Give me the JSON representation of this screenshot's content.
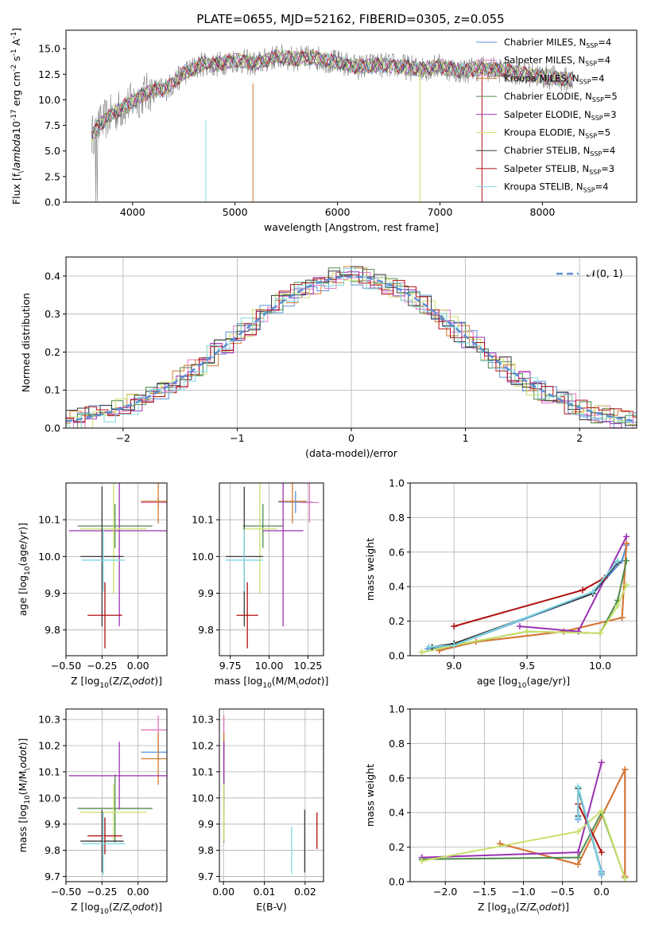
{
  "figure": {
    "title": "PLATE=0655, MJD=52162, FIBERID=0305, z=0.055"
  },
  "series": [
    {
      "name": "Chabrier MILES, N$_{SSP}$=4",
      "label_main": "Chabrier MILES, N",
      "label_sub": "SSP",
      "label_end": "=4",
      "color": "#5b8fd6"
    },
    {
      "name": "Salpeter MILES, N$_{SSP}$=4",
      "label_main": "Salpeter MILES, N",
      "label_sub": "SSP",
      "label_end": "=4",
      "color": "#e377c2"
    },
    {
      "name": "Kroupa MILES, N$_{SSP}$=4",
      "label_main": "Kroupa MILES, N",
      "label_sub": "SSP",
      "label_end": "=4",
      "color": "#d4782f"
    },
    {
      "name": "Chabrier ELODIE, N$_{SSP}$=5",
      "label_main": "Chabrier ELODIE, N",
      "label_sub": "SSP",
      "label_end": "=5",
      "color": "#4f8a4a"
    },
    {
      "name": "Salpeter ELODIE, N$_{SSP}$=3",
      "label_main": "Salpeter ELODIE, N",
      "label_sub": "SSP",
      "label_end": "=3",
      "color": "#9b30b4"
    },
    {
      "name": "Kroupa ELODIE, N$_{SSP}$=5",
      "label_main": "Kroupa ELODIE, N",
      "label_sub": "SSP",
      "label_end": "=5",
      "color": "#c8e06a"
    },
    {
      "name": "Chabrier STELIB, N$_{SSP}$=4",
      "label_main": "Chabrier STELIB, N",
      "label_sub": "SSP",
      "label_end": "=4",
      "color": "#3a3a3a"
    },
    {
      "name": "Salpeter STELIB, N$_{SSP}$=3",
      "label_main": "Salpeter STELIB, N",
      "label_sub": "SSP",
      "label_end": "=3",
      "color": "#b01010"
    },
    {
      "name": "Kroupa STELIB, N$_{SSP}$=4",
      "label_main": "Kroupa STELIB, N",
      "label_sub": "SSP",
      "label_end": "=4",
      "color": "#7fd8e3"
    }
  ],
  "chart_data": [
    {
      "id": "spectrum",
      "type": "line",
      "xlabel": "wavelength [Angstrom, rest frame]",
      "ylabel": "Flux [f$_\\lambda$10$^{-17}$ erg cm$^{-2}$ s$^{-1}$ A$^{-1}$]",
      "xlim": [
        3350,
        8920
      ],
      "ylim": [
        0,
        16.8
      ],
      "xticks": [
        4000,
        5000,
        6000,
        7000,
        8000
      ],
      "yticks": [
        0.0,
        2.5,
        5.0,
        7.5,
        10.0,
        12.5,
        15.0
      ],
      "grid": false,
      "legend": "right",
      "data_color": "#808080",
      "continuum": [
        [
          3600,
          6.5
        ],
        [
          3700,
          7.8
        ],
        [
          3800,
          8.6
        ],
        [
          3900,
          9.2
        ],
        [
          4000,
          9.8
        ],
        [
          4100,
          10.5
        ],
        [
          4200,
          10.9
        ],
        [
          4300,
          11.0
        ],
        [
          4400,
          11.6
        ],
        [
          4500,
          12.6
        ],
        [
          4600,
          13.1
        ],
        [
          4700,
          13.6
        ],
        [
          4800,
          13.4
        ],
        [
          4900,
          13.7
        ],
        [
          5000,
          13.9
        ],
        [
          5200,
          13.5
        ],
        [
          5400,
          14.2
        ],
        [
          5600,
          14.0
        ],
        [
          5800,
          14.1
        ],
        [
          6000,
          13.6
        ],
        [
          6200,
          13.2
        ],
        [
          6400,
          13.4
        ],
        [
          6600,
          13.3
        ],
        [
          6800,
          13.0
        ],
        [
          7000,
          13.3
        ],
        [
          7200,
          12.8
        ],
        [
          7400,
          13.1
        ],
        [
          7600,
          12.9
        ],
        [
          7800,
          12.6
        ],
        [
          8000,
          12.3
        ],
        [
          8200,
          12.0
        ],
        [
          8300,
          11.9
        ]
      ]
    },
    {
      "id": "residuals",
      "type": "line",
      "xlabel": "(data-model)/error",
      "ylabel": "Normed distribution",
      "xlim": [
        -2.5,
        2.5
      ],
      "ylim": [
        0,
        0.45
      ],
      "xticks": [
        -2,
        -1,
        0,
        1,
        2
      ],
      "yticks": [
        0.0,
        0.1,
        0.2,
        0.3,
        0.4
      ],
      "grid": true,
      "legend": "top-right",
      "reference": {
        "name": "$\\mathcal{N}(0,1)$",
        "label_main": "𝒩(0, 1)",
        "color": "#5b8fd6",
        "style": "dashed"
      }
    },
    {
      "id": "z-age",
      "type": "scatter",
      "xlabel": "Z [log$_{10}$(Z/Z$_\\odot$)]",
      "ylabel": "age  [log$_{10}$(age/yr)]",
      "xlim": [
        -0.5,
        0.2
      ],
      "ylim": [
        9.73,
        10.2
      ],
      "xticks": [
        -0.5,
        -0.25,
        0.0
      ],
      "yticks": [
        9.8,
        9.9,
        10.0,
        10.1
      ],
      "grid": true,
      "points": [
        {
          "s": 0,
          "x": 0.14,
          "y": 10.148,
          "xerr": 0.12,
          "yerr": 0.01
        },
        {
          "s": 1,
          "x": 0.14,
          "y": 10.147,
          "xerr": 0.12,
          "yerr": 0.01
        },
        {
          "s": 2,
          "x": 0.14,
          "y": 10.15,
          "xerr": 0.12,
          "yerr": 0.06
        },
        {
          "s": 3,
          "x": -0.16,
          "y": 10.083,
          "xerr": 0.26,
          "yerr": 0.06
        },
        {
          "s": 4,
          "x": -0.13,
          "y": 10.07,
          "xerr": 0.35,
          "yerr": 0.26
        },
        {
          "s": 5,
          "x": -0.17,
          "y": 10.075,
          "xerr": 0.23,
          "yerr": 0.175
        },
        {
          "s": 6,
          "x": -0.25,
          "y": 10.0,
          "xerr": 0.15,
          "yerr": 0.19
        },
        {
          "s": 7,
          "x": -0.23,
          "y": 9.84,
          "xerr": 0.12,
          "yerr": 0.09
        },
        {
          "s": 8,
          "x": -0.24,
          "y": 9.99,
          "xerr": 0.15,
          "yerr": 0.085
        }
      ]
    },
    {
      "id": "mass-age",
      "type": "scatter",
      "xlabel": "mass [log$_{10}$(M/M$_\\odot$)]",
      "ylabel": "",
      "xlim": [
        9.68,
        10.35
      ],
      "ylim": [
        9.73,
        10.2
      ],
      "xticks": [
        9.75,
        10.0,
        10.25
      ],
      "yticks": [
        9.8,
        9.9,
        10.0,
        10.1
      ],
      "grid": true,
      "points": [
        {
          "s": 0,
          "x": 10.17,
          "y": 10.148,
          "xerr": 0.11,
          "yerr": 0.03
        },
        {
          "s": 1,
          "x": 10.26,
          "y": 10.147,
          "xerr": 0.06,
          "yerr": 0.055
        },
        {
          "s": 2,
          "x": 10.15,
          "y": 10.15,
          "xerr": 0.09,
          "yerr": 0.06
        },
        {
          "s": 3,
          "x": 9.96,
          "y": 10.083,
          "xerr": 0.13,
          "yerr": 0.06
        },
        {
          "s": 4,
          "x": 10.09,
          "y": 10.07,
          "xerr": 0.13,
          "yerr": 0.26
        },
        {
          "s": 5,
          "x": 9.94,
          "y": 10.075,
          "xerr": 0.11,
          "yerr": 0.175
        },
        {
          "s": 6,
          "x": 9.84,
          "y": 10.0,
          "xerr": 0.12,
          "yerr": 0.19
        },
        {
          "s": 7,
          "x": 9.86,
          "y": 9.84,
          "xerr": 0.07,
          "yerr": 0.09
        },
        {
          "s": 8,
          "x": 9.84,
          "y": 9.99,
          "xerr": 0.12,
          "yerr": 0.085
        }
      ]
    },
    {
      "id": "mw-age",
      "type": "line",
      "xlabel": "age  [log$_{10}$(age/yr)]",
      "ylabel": "mass weight",
      "xlim": [
        8.7,
        10.25
      ],
      "ylim": [
        0,
        1.0
      ],
      "xticks": [
        9.0,
        9.5,
        10.0
      ],
      "yticks": [
        0.0,
        0.2,
        0.4,
        0.6,
        0.8,
        1.0
      ],
      "grid": true,
      "lines": [
        {
          "s": 0,
          "x": [
            8.82,
            9.0,
            9.95,
            10.15,
            10.18
          ],
          "y": [
            0.04,
            0.06,
            0.36,
            0.55,
            0.64
          ]
        },
        {
          "s": 1,
          "x": [
            8.9,
            9.15,
            9.75,
            10.15,
            10.18
          ],
          "y": [
            0.03,
            0.08,
            0.14,
            0.22,
            0.65
          ]
        },
        {
          "s": 2,
          "x": [
            8.9,
            9.15,
            9.75,
            10.15,
            10.18
          ],
          "y": [
            0.03,
            0.08,
            0.14,
            0.22,
            0.65
          ]
        },
        {
          "s": 3,
          "x": [
            8.78,
            9.0,
            9.5,
            10.0,
            10.12,
            10.18
          ],
          "y": [
            0.02,
            0.06,
            0.14,
            0.13,
            0.32,
            0.55
          ]
        },
        {
          "s": 4,
          "x": [
            9.45,
            9.85,
            10.18
          ],
          "y": [
            0.17,
            0.14,
            0.69
          ]
        },
        {
          "s": 5,
          "x": [
            8.78,
            9.0,
            9.5,
            10.0,
            10.12,
            10.18
          ],
          "y": [
            0.02,
            0.06,
            0.14,
            0.13,
            0.29,
            0.41
          ]
        },
        {
          "s": 6,
          "x": [
            8.85,
            9.0,
            9.95,
            10.12
          ],
          "y": [
            0.05,
            0.07,
            0.36,
            0.54
          ]
        },
        {
          "s": 7,
          "x": [
            9.0,
            9.88,
            10.03
          ],
          "y": [
            0.17,
            0.38,
            0.45
          ]
        },
        {
          "s": 8,
          "x": [
            8.83,
            9.0,
            9.95,
            10.12
          ],
          "y": [
            0.05,
            0.06,
            0.37,
            0.55
          ]
        }
      ]
    },
    {
      "id": "z-mass",
      "type": "scatter",
      "xlabel": "Z [log$_{10}$(Z/Z$_\\odot$)]",
      "ylabel": "mass [log$_{10}$(M/M$_\\odot$)]",
      "xlim": [
        -0.5,
        0.2
      ],
      "ylim": [
        9.68,
        10.34
      ],
      "xticks": [
        -0.5,
        -0.25,
        0.0
      ],
      "yticks": [
        9.7,
        9.8,
        9.9,
        10.0,
        10.1,
        10.2,
        10.3
      ],
      "grid": true,
      "points": [
        {
          "s": 0,
          "x": 0.14,
          "y": 10.175,
          "xerr": 0.12,
          "yerr": 0.03
        },
        {
          "s": 1,
          "x": 0.14,
          "y": 10.26,
          "xerr": 0.12,
          "yerr": 0.055
        },
        {
          "s": 2,
          "x": 0.14,
          "y": 10.15,
          "xerr": 0.12,
          "yerr": 0.1
        },
        {
          "s": 3,
          "x": -0.16,
          "y": 9.96,
          "xerr": 0.26,
          "yerr": 0.13
        },
        {
          "s": 4,
          "x": -0.13,
          "y": 10.085,
          "xerr": 0.35,
          "yerr": 0.13
        },
        {
          "s": 5,
          "x": -0.17,
          "y": 9.945,
          "xerr": 0.23,
          "yerr": 0.11
        },
        {
          "s": 6,
          "x": -0.25,
          "y": 9.835,
          "xerr": 0.15,
          "yerr": 0.12
        },
        {
          "s": 7,
          "x": -0.23,
          "y": 9.855,
          "xerr": 0.12,
          "yerr": 0.07
        },
        {
          "s": 8,
          "x": -0.24,
          "y": 9.825,
          "xerr": 0.15,
          "yerr": 0.12
        }
      ]
    },
    {
      "id": "ebv-mass",
      "type": "scatter",
      "xlabel": "E(B-V)",
      "ylabel": "",
      "xlim": [
        -0.001,
        0.0245
      ],
      "ylim": [
        9.68,
        10.34
      ],
      "xticks": [
        0.0,
        0.01,
        0.02
      ],
      "yticks": [
        9.7,
        9.8,
        9.9,
        10.0,
        10.1,
        10.2,
        10.3
      ],
      "grid": true,
      "points": [
        {
          "s": 0,
          "x": 0.0001,
          "y": 10.175,
          "xerr": 0,
          "yerr": 0.03
        },
        {
          "s": 1,
          "x": 0.0001,
          "y": 10.26,
          "xerr": 0,
          "yerr": 0.055
        },
        {
          "s": 2,
          "x": 0.0001,
          "y": 10.15,
          "xerr": 0,
          "yerr": 0.1
        },
        {
          "s": 3,
          "x": 0.0001,
          "y": 9.96,
          "xerr": 0,
          "yerr": 0.13
        },
        {
          "s": 4,
          "x": 0.0001,
          "y": 10.085,
          "xerr": 0,
          "yerr": 0.13
        },
        {
          "s": 5,
          "x": 0.0001,
          "y": 9.945,
          "xerr": 0,
          "yerr": 0.11
        },
        {
          "s": 6,
          "x": 0.0199,
          "y": 9.835,
          "xerr": 0,
          "yerr": 0.12
        },
        {
          "s": 7,
          "x": 0.0229,
          "y": 9.875,
          "xerr": 0,
          "yerr": 0.07
        },
        {
          "s": 8,
          "x": 0.0167,
          "y": 9.8,
          "xerr": 0,
          "yerr": 0.09
        }
      ]
    },
    {
      "id": "mw-z",
      "type": "line",
      "xlabel": "Z [log$_{10}$(Z/Z$_\\odot$)]",
      "ylabel": "mass weight",
      "xlim": [
        -2.45,
        0.45
      ],
      "ylim": [
        0,
        1.0
      ],
      "xticks": [
        -2.0,
        -1.5,
        -1.0,
        -0.5,
        0.0
      ],
      "yticks": [
        0.0,
        0.2,
        0.4,
        0.6,
        0.8,
        1.0
      ],
      "grid": true,
      "lines": [
        {
          "s": 0,
          "x": [
            -0.3,
            -0.3,
            0.0,
            0.0
          ],
          "y": [
            0.36,
            0.55,
            0.06,
            0.04
          ]
        },
        {
          "s": 1,
          "x": [
            -1.3,
            -0.3,
            0.3,
            0.3
          ],
          "y": [
            0.22,
            0.1,
            0.65,
            0.03
          ]
        },
        {
          "s": 2,
          "x": [
            -1.3,
            -0.3,
            0.3,
            0.3
          ],
          "y": [
            0.22,
            0.1,
            0.65,
            0.03
          ]
        },
        {
          "s": 3,
          "x": [
            -2.3,
            -0.3,
            0.0,
            0.3
          ],
          "y": [
            0.13,
            0.14,
            0.4,
            0.02
          ]
        },
        {
          "s": 4,
          "x": [
            -2.3,
            -0.3,
            0.0
          ],
          "y": [
            0.14,
            0.17,
            0.69
          ]
        },
        {
          "s": 5,
          "x": [
            -2.3,
            -0.3,
            0.0,
            0.3
          ],
          "y": [
            0.12,
            0.29,
            0.41,
            0.02
          ]
        },
        {
          "s": 6,
          "x": [
            -0.3,
            -0.3,
            0.0
          ],
          "y": [
            0.38,
            0.54,
            0.05
          ]
        },
        {
          "s": 7,
          "x": [
            -0.3,
            0.0
          ],
          "y": [
            0.45,
            0.17
          ]
        },
        {
          "s": 8,
          "x": [
            -0.3,
            -0.3,
            0.0
          ],
          "y": [
            0.37,
            0.55,
            0.05
          ]
        }
      ]
    }
  ]
}
